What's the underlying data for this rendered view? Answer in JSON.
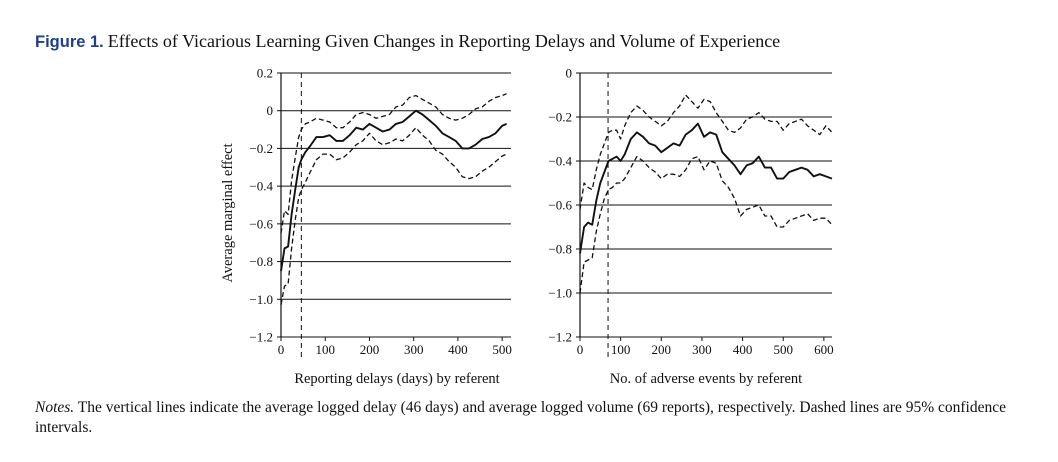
{
  "figure": {
    "label": "Figure 1.",
    "title": "Effects of Vicarious Learning Given Changes in Reporting Delays and Volume of Experience",
    "notes_label": "Notes.",
    "notes_text": "The vertical lines indicate the average logged delay (46 days) and average logged volume (69 reports), respectively. Dashed lines are 95% confidence intervals."
  },
  "chart_data": [
    {
      "type": "line",
      "title": "",
      "xlabel": "Reporting delays (days) by referent",
      "ylabel": "Average marginal effect",
      "xlim": [
        0,
        520
      ],
      "ylim": [
        -1.2,
        0.2
      ],
      "xticks": [
        0,
        100,
        200,
        300,
        400,
        500
      ],
      "xtick_labels": [
        "0",
        "100",
        "200",
        "300",
        "400",
        "500"
      ],
      "yticks": [
        0.2,
        0,
        -0.2,
        -0.4,
        -0.6,
        -0.8,
        -1.0,
        -1.2
      ],
      "ytick_labels": [
        "0.2",
        "0",
        "−0.2",
        "−0.4",
        "−0.6",
        "−0.8",
        "−1.0",
        "−1.2"
      ],
      "grid": "horizontal",
      "reference_line_x": 46,
      "series": [
        {
          "style": "solid",
          "x": [
            0,
            8,
            16,
            24,
            32,
            40,
            46,
            55,
            65,
            80,
            95,
            110,
            125,
            140,
            155,
            170,
            185,
            200,
            215,
            230,
            245,
            260,
            275,
            290,
            305,
            320,
            335,
            350,
            365,
            380,
            395,
            410,
            425,
            440,
            455,
            470,
            485,
            500,
            510
          ],
          "y": [
            -0.85,
            -0.73,
            -0.72,
            -0.55,
            -0.42,
            -0.3,
            -0.26,
            -0.22,
            -0.19,
            -0.14,
            -0.14,
            -0.13,
            -0.16,
            -0.16,
            -0.13,
            -0.09,
            -0.1,
            -0.07,
            -0.09,
            -0.11,
            -0.1,
            -0.07,
            -0.06,
            -0.03,
            0.0,
            -0.02,
            -0.05,
            -0.08,
            -0.12,
            -0.14,
            -0.16,
            -0.2,
            -0.2,
            -0.18,
            -0.15,
            -0.14,
            -0.12,
            -0.08,
            -0.07
          ]
        },
        {
          "style": "dashed",
          "x": [
            0,
            8,
            16,
            24,
            32,
            40,
            46,
            55,
            65,
            80,
            95,
            110,
            125,
            140,
            155,
            170,
            185,
            200,
            215,
            230,
            245,
            260,
            275,
            290,
            305,
            320,
            335,
            350,
            365,
            380,
            395,
            410,
            425,
            440,
            455,
            470,
            485,
            500,
            510
          ],
          "y": [
            -0.65,
            -0.53,
            -0.55,
            -0.37,
            -0.25,
            -0.14,
            -0.1,
            -0.07,
            -0.06,
            -0.04,
            -0.05,
            -0.06,
            -0.09,
            -0.09,
            -0.06,
            -0.02,
            -0.01,
            -0.02,
            -0.04,
            -0.03,
            -0.02,
            0.02,
            0.03,
            0.07,
            0.08,
            0.06,
            0.04,
            0.02,
            -0.02,
            -0.04,
            -0.05,
            -0.04,
            -0.02,
            0.01,
            0.02,
            0.05,
            0.07,
            0.08,
            0.09
          ]
        },
        {
          "style": "dashed",
          "x": [
            0,
            8,
            16,
            24,
            32,
            40,
            46,
            55,
            65,
            80,
            95,
            110,
            125,
            140,
            155,
            170,
            185,
            200,
            215,
            230,
            245,
            260,
            275,
            290,
            305,
            320,
            335,
            350,
            365,
            380,
            395,
            410,
            425,
            440,
            455,
            470,
            485,
            500,
            510
          ],
          "y": [
            -1.03,
            -0.93,
            -0.92,
            -0.73,
            -0.58,
            -0.46,
            -0.42,
            -0.38,
            -0.33,
            -0.26,
            -0.23,
            -0.23,
            -0.26,
            -0.25,
            -0.22,
            -0.18,
            -0.16,
            -0.12,
            -0.16,
            -0.18,
            -0.17,
            -0.15,
            -0.16,
            -0.13,
            -0.09,
            -0.13,
            -0.16,
            -0.21,
            -0.23,
            -0.27,
            -0.3,
            -0.35,
            -0.36,
            -0.35,
            -0.32,
            -0.3,
            -0.27,
            -0.24,
            -0.23
          ]
        }
      ]
    },
    {
      "type": "line",
      "title": "",
      "xlabel": "No. of adverse events by referent",
      "ylabel": "",
      "xlim": [
        0,
        620
      ],
      "ylim": [
        -1.2,
        0
      ],
      "xticks": [
        0,
        100,
        200,
        300,
        400,
        500,
        600
      ],
      "xtick_labels": [
        "0",
        "100",
        "200",
        "300",
        "400",
        "500",
        "600"
      ],
      "yticks": [
        0,
        -0.2,
        -0.4,
        -0.6,
        -0.8,
        -1.0,
        -1.2
      ],
      "ytick_labels": [
        "0",
        "−0.2",
        "−0.4",
        "−0.6",
        "−0.8",
        "−1.0",
        "−1.2"
      ],
      "grid": "horizontal",
      "reference_line_x": 69,
      "series": [
        {
          "style": "solid",
          "x": [
            0,
            10,
            20,
            30,
            40,
            50,
            60,
            70,
            80,
            90,
            100,
            110,
            125,
            140,
            155,
            170,
            185,
            200,
            215,
            230,
            245,
            260,
            275,
            290,
            305,
            320,
            335,
            350,
            365,
            380,
            395,
            410,
            425,
            440,
            455,
            470,
            485,
            500,
            515,
            530,
            545,
            560,
            575,
            590,
            605,
            620
          ],
          "y": [
            -0.82,
            -0.7,
            -0.68,
            -0.69,
            -0.58,
            -0.5,
            -0.45,
            -0.4,
            -0.39,
            -0.38,
            -0.4,
            -0.37,
            -0.3,
            -0.27,
            -0.29,
            -0.32,
            -0.33,
            -0.36,
            -0.34,
            -0.32,
            -0.33,
            -0.28,
            -0.26,
            -0.23,
            -0.29,
            -0.27,
            -0.28,
            -0.36,
            -0.39,
            -0.42,
            -0.46,
            -0.42,
            -0.41,
            -0.38,
            -0.43,
            -0.43,
            -0.48,
            -0.48,
            -0.45,
            -0.44,
            -0.43,
            -0.44,
            -0.47,
            -0.46,
            -0.47,
            -0.48
          ]
        },
        {
          "style": "dashed",
          "x": [
            0,
            10,
            20,
            30,
            40,
            50,
            60,
            70,
            80,
            90,
            100,
            110,
            125,
            140,
            155,
            170,
            185,
            200,
            215,
            230,
            245,
            260,
            275,
            290,
            305,
            320,
            335,
            350,
            365,
            380,
            395,
            410,
            425,
            440,
            455,
            470,
            485,
            500,
            515,
            530,
            545,
            560,
            575,
            590,
            605,
            620
          ],
          "y": [
            -0.62,
            -0.5,
            -0.52,
            -0.53,
            -0.44,
            -0.37,
            -0.32,
            -0.27,
            -0.26,
            -0.26,
            -0.3,
            -0.24,
            -0.18,
            -0.15,
            -0.17,
            -0.2,
            -0.22,
            -0.24,
            -0.22,
            -0.18,
            -0.15,
            -0.1,
            -0.13,
            -0.16,
            -0.12,
            -0.13,
            -0.18,
            -0.22,
            -0.26,
            -0.27,
            -0.25,
            -0.21,
            -0.2,
            -0.18,
            -0.21,
            -0.22,
            -0.22,
            -0.26,
            -0.23,
            -0.22,
            -0.21,
            -0.24,
            -0.26,
            -0.28,
            -0.24,
            -0.27
          ]
        },
        {
          "style": "dashed",
          "x": [
            0,
            10,
            20,
            30,
            40,
            50,
            60,
            70,
            80,
            90,
            100,
            110,
            125,
            140,
            155,
            170,
            185,
            200,
            215,
            230,
            245,
            260,
            275,
            290,
            305,
            320,
            335,
            350,
            365,
            380,
            395,
            410,
            425,
            440,
            455,
            470,
            485,
            500,
            515,
            530,
            545,
            560,
            575,
            590,
            605,
            620
          ],
          "y": [
            -1.0,
            -0.86,
            -0.85,
            -0.84,
            -0.72,
            -0.64,
            -0.57,
            -0.53,
            -0.52,
            -0.5,
            -0.5,
            -0.48,
            -0.43,
            -0.38,
            -0.4,
            -0.43,
            -0.45,
            -0.48,
            -0.46,
            -0.46,
            -0.47,
            -0.44,
            -0.39,
            -0.38,
            -0.44,
            -0.4,
            -0.41,
            -0.49,
            -0.52,
            -0.57,
            -0.65,
            -0.62,
            -0.61,
            -0.6,
            -0.65,
            -0.65,
            -0.7,
            -0.7,
            -0.67,
            -0.66,
            -0.65,
            -0.64,
            -0.67,
            -0.66,
            -0.66,
            -0.69
          ]
        }
      ]
    }
  ]
}
